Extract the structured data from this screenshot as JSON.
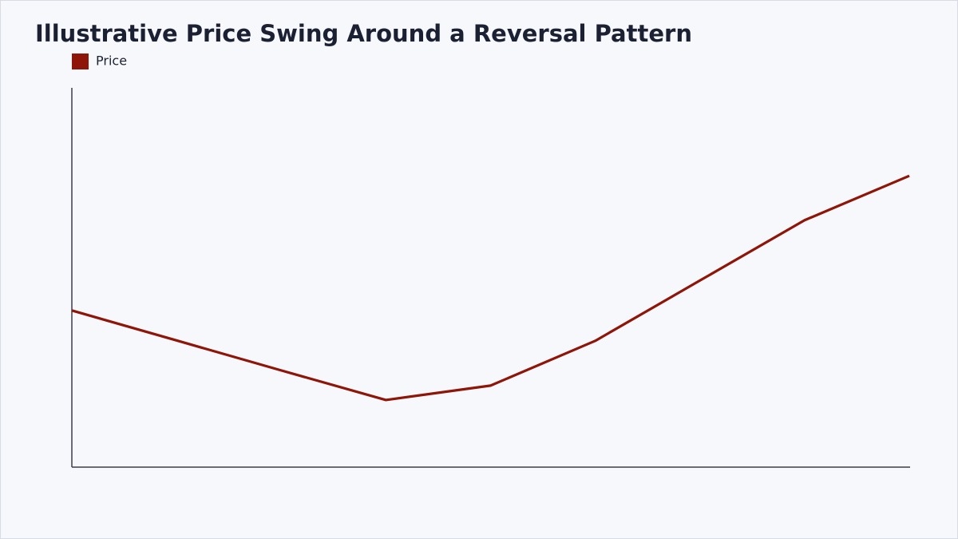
{
  "chart_data": {
    "type": "line",
    "title": "Illustrative Price Swing Around a Reversal Pattern",
    "categories": [
      null,
      null,
      null,
      null,
      null,
      null,
      null,
      null,
      null
    ],
    "series": [
      {
        "name": "Price",
        "color": "#8e1508",
        "values": [
          41.3,
          33.4,
          25.5,
          17.7,
          21.5,
          33.3,
          49.2,
          65.1,
          76.8
        ]
      }
    ],
    "ylim": [
      0,
      100
    ],
    "legend": "top-left"
  }
}
